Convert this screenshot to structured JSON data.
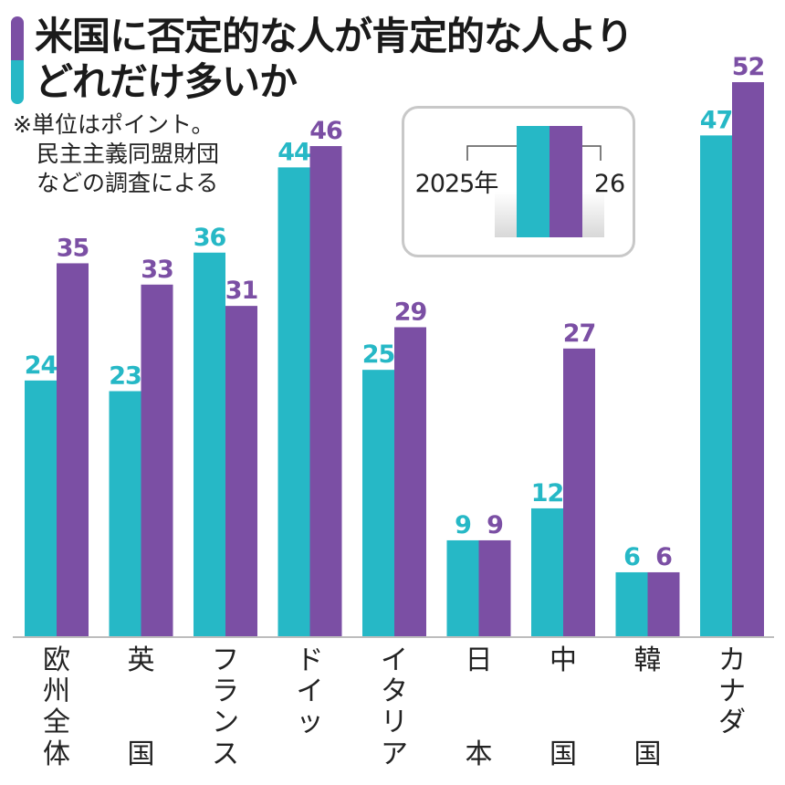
{
  "title": {
    "line1": "米国に否定的な人が肯定的な人より",
    "line2": "どれだけ多いか"
  },
  "note": {
    "line1": "※単位はポイント。",
    "line2": "民主主義同盟財団",
    "line3": "などの調査による"
  },
  "legend": {
    "left_label": "2025年",
    "right_label": "26"
  },
  "colors": {
    "series_2025": "#26b8c6",
    "series_2026": "#7b4fa4",
    "axis": "#bdbdbd"
  },
  "chart_data": {
    "type": "bar",
    "categories": [
      "欧州全体",
      "英国",
      "フランス",
      "ドイツ",
      "イタリア",
      "日本",
      "中国",
      "韓国",
      "カナダ"
    ],
    "category_lines": [
      [
        "欧",
        "州",
        "全",
        "体"
      ],
      [
        "英",
        "",
        "",
        "国"
      ],
      [
        "フ",
        "ラ",
        "ン",
        "ス"
      ],
      [
        "ド",
        "イ",
        "ッ",
        ""
      ],
      [
        "イ",
        "タ",
        "リ",
        "ア"
      ],
      [
        "日",
        "",
        "",
        "本"
      ],
      [
        "中",
        "",
        "",
        "国"
      ],
      [
        "韓",
        "",
        "",
        "国"
      ],
      [
        "カ",
        "ナ",
        "ダ",
        ""
      ]
    ],
    "series": [
      {
        "name": "2025年",
        "values": [
          24,
          23,
          36,
          44,
          25,
          9,
          12,
          6,
          47
        ]
      },
      {
        "name": "26",
        "values": [
          35,
          33,
          31,
          46,
          29,
          9,
          27,
          6,
          52
        ]
      }
    ],
    "ylim": [
      0,
      52
    ],
    "grid": false,
    "legend_position": "top-center"
  }
}
